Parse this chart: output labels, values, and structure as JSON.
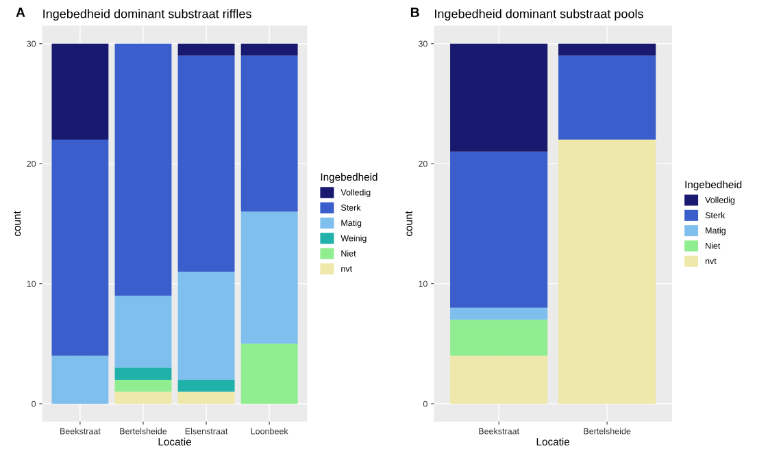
{
  "chart_data": [
    {
      "type": "bar",
      "stacked": true,
      "title": "Ingebedheid dominant substraat riffles",
      "annotations": [
        "A"
      ],
      "xlabel": "Locatie",
      "ylabel": "count",
      "legend_title": "Ingebedheid",
      "legend": "right",
      "grid": true,
      "categories": [
        "Beekstraat",
        "Bertelsheide",
        "Elsenstraat",
        "Loonbeek"
      ],
      "ylim": [
        -1.5,
        31.5
      ],
      "yticks": [
        0,
        10,
        20,
        30
      ],
      "series": [
        {
          "name": "nvt",
          "color": "#eee8aa",
          "values": [
            0,
            1,
            1,
            0
          ]
        },
        {
          "name": "Niet",
          "color": "#90ee90",
          "values": [
            0,
            1,
            0,
            5
          ]
        },
        {
          "name": "Weinig",
          "color": "#20b2aa",
          "values": [
            0,
            1,
            1,
            0
          ]
        },
        {
          "name": "Matig",
          "color": "#7fbfed",
          "values": [
            4,
            6,
            9,
            11
          ]
        },
        {
          "name": "Sterk",
          "color": "#3a5fcd",
          "values": [
            18,
            21,
            18,
            13
          ]
        },
        {
          "name": "Volledig",
          "color": "#191970",
          "values": [
            8,
            0,
            1,
            1
          ]
        }
      ]
    },
    {
      "type": "bar",
      "stacked": true,
      "title": "Ingebedheid dominant substraat pools",
      "annotations": [
        "B"
      ],
      "xlabel": "Locatie",
      "ylabel": "count",
      "legend_title": "Ingebedheid",
      "legend": "right",
      "grid": true,
      "categories": [
        "Beekstraat",
        "Bertelsheide"
      ],
      "ylim": [
        -1.5,
        31.5
      ],
      "yticks": [
        0,
        10,
        20,
        30
      ],
      "series": [
        {
          "name": "nvt",
          "color": "#eee8aa",
          "values": [
            4,
            22
          ]
        },
        {
          "name": "Niet",
          "color": "#90ee90",
          "values": [
            3,
            0
          ]
        },
        {
          "name": "Matig",
          "color": "#7fbfed",
          "values": [
            1,
            0
          ]
        },
        {
          "name": "Sterk",
          "color": "#3a5fcd",
          "values": [
            13,
            7
          ]
        },
        {
          "name": "Volledig",
          "color": "#191970",
          "values": [
            9,
            1
          ]
        }
      ]
    }
  ]
}
